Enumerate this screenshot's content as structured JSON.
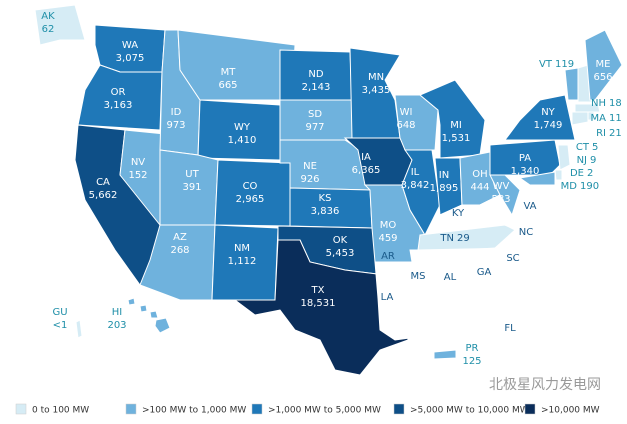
{
  "states": [
    {
      "name": "AK",
      "value": "62",
      "color": "#d6ecf5"
    },
    {
      "name": "WA",
      "value": "3,075",
      "color": "#1f78b8"
    },
    {
      "name": "OR",
      "value": "3,163",
      "color": "#1f78b8"
    },
    {
      "name": "CA",
      "value": "5,662",
      "color": "#0e4f87"
    },
    {
      "name": "NV",
      "value": "152",
      "color": "#6fb2dd"
    },
    {
      "name": "ID",
      "value": "973",
      "color": "#6fb2dd"
    },
    {
      "name": "MT",
      "value": "665",
      "color": "#6fb2dd"
    },
    {
      "name": "WY",
      "value": "1,410",
      "color": "#1f78b8"
    },
    {
      "name": "UT",
      "value": "391",
      "color": "#6fb2dd"
    },
    {
      "name": "AZ",
      "value": "268",
      "color": "#6fb2dd"
    },
    {
      "name": "CO",
      "value": "2,965",
      "color": "#1f78b8"
    },
    {
      "name": "NM",
      "value": "1,112",
      "color": "#1f78b8"
    },
    {
      "name": "ND",
      "value": "2,143",
      "color": "#1f78b8"
    },
    {
      "name": "SD",
      "value": "977",
      "color": "#6fb2dd"
    },
    {
      "name": "NE",
      "value": "926",
      "color": "#6fb2dd"
    },
    {
      "name": "KS",
      "value": "3,836",
      "color": "#1f78b8"
    },
    {
      "name": "OK",
      "value": "5,453",
      "color": "#0e4f87"
    },
    {
      "name": "TX",
      "value": "18,531",
      "color": "#0a2d5a"
    },
    {
      "name": "MN",
      "value": "3,435",
      "color": "#1f78b8"
    },
    {
      "name": "IA",
      "value": "6,365",
      "color": "#0e4f87"
    },
    {
      "name": "MO",
      "value": "459",
      "color": "#6fb2dd"
    },
    {
      "name": "AR",
      "color": "#ffffff"
    },
    {
      "name": "LA",
      "color": "#ffffff"
    },
    {
      "name": "WI",
      "value": "648",
      "color": "#6fb2dd"
    },
    {
      "name": "IL",
      "value": "3,842",
      "color": "#1f78b8"
    },
    {
      "name": "MI",
      "value": "1,531",
      "color": "#1f78b8"
    },
    {
      "name": "IN",
      "value": "1,895",
      "color": "#1f78b8"
    },
    {
      "name": "OH",
      "value": "444",
      "color": "#6fb2dd"
    },
    {
      "name": "KY",
      "color": "#ffffff"
    },
    {
      "name": "TN",
      "value": "29",
      "color": "#d6ecf5"
    },
    {
      "name": "MS",
      "color": "#ffffff"
    },
    {
      "name": "AL",
      "color": "#ffffff"
    },
    {
      "name": "GA",
      "color": "#ffffff"
    },
    {
      "name": "SC",
      "color": "#ffffff"
    },
    {
      "name": "NC",
      "color": "#ffffff"
    },
    {
      "name": "VA",
      "color": "#ffffff"
    },
    {
      "name": "WV",
      "value": "583",
      "color": "#6fb2dd"
    },
    {
      "name": "PA",
      "value": "1,340",
      "color": "#1f78b8"
    },
    {
      "name": "NY",
      "value": "1,749",
      "color": "#1f78b8"
    },
    {
      "name": "VT",
      "value": "119",
      "color": "#6fb2dd"
    },
    {
      "name": "NH",
      "value": "18",
      "color": "#d6ecf5"
    },
    {
      "name": "ME",
      "value": "656",
      "color": "#6fb2dd"
    },
    {
      "name": "MA",
      "value": "11",
      "color": "#d6ecf5"
    },
    {
      "name": "RI",
      "value": "21",
      "color": "#d6ecf5"
    },
    {
      "name": "CT",
      "value": "5",
      "color": "#d6ecf5"
    },
    {
      "name": "NJ",
      "value": "9",
      "color": "#d6ecf5"
    },
    {
      "name": "DE",
      "value": "2",
      "color": "#d6ecf5"
    },
    {
      "name": "MD",
      "value": "190",
      "color": "#6fb2dd"
    },
    {
      "name": "FL",
      "color": "#ffffff"
    },
    {
      "name": "HI",
      "value": "203",
      "color": "#6fb2dd"
    },
    {
      "name": "GU",
      "value": "<1",
      "color": "#d6ecf5"
    },
    {
      "name": "PR",
      "value": "125",
      "color": "#6fb2dd"
    }
  ],
  "legend": [
    {
      "label": "0 to 100 MW",
      "color": "#d6ecf5"
    },
    {
      "label": ">100 MW to 1,000 MW",
      "color": "#6fb2dd"
    },
    {
      "label": ">1,000 MW to 5,000 MW",
      "color": "#1f78b8"
    },
    {
      "label": ">5,000 MW to 10,000 MW",
      "color": "#0e4f87"
    },
    {
      "label": ">10,000 MW",
      "color": "#0a2d5a"
    }
  ],
  "watermark": "北极星风力发电网"
}
